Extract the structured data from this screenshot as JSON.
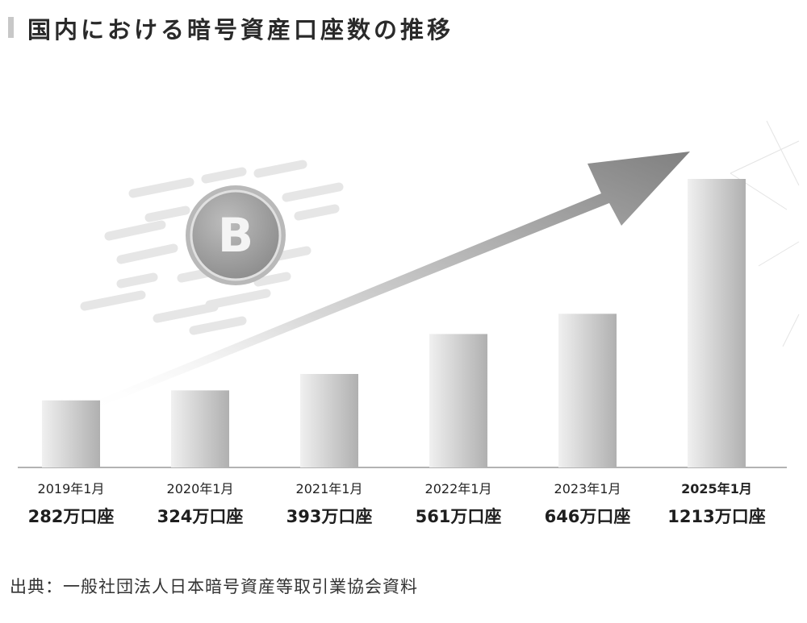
{
  "header": {
    "title": "国内における暗号資産口座数の推移"
  },
  "footer": {
    "source": "出典：一般社団法人日本暗号資産等取引業協会資料"
  },
  "decoration": {
    "coin_icon": "bitcoin-icon",
    "coin_symbol": "B",
    "arrow_icon": "growth-arrow-icon"
  },
  "chart_data": {
    "type": "bar",
    "title": "国内における暗号資産口座数の推移",
    "categories": [
      "2019年1月",
      "2020年1月",
      "2021年1月",
      "2022年1月",
      "2023年1月",
      "2025年1月"
    ],
    "value_labels": [
      "282万口座",
      "324万口座",
      "393万口座",
      "561万口座",
      "646万口座",
      "1213万口座"
    ],
    "values": [
      282,
      324,
      393,
      561,
      646,
      1213
    ],
    "unit": "万口座",
    "ylim": [
      0,
      1213
    ],
    "grid": false,
    "legend": "none",
    "colors": {
      "bar_light": "#eeeeee",
      "bar_dark": "#b4b4b4",
      "arrow": "#8a8a8a",
      "coin": "#9a9a9a"
    }
  }
}
